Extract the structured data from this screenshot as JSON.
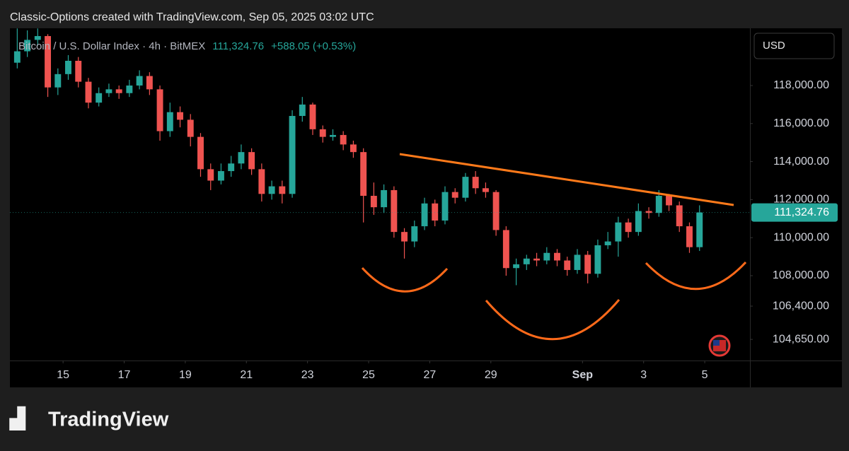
{
  "header": "Classic-Options created with TradingView.com, Sep 05, 2025 03:02 UTC",
  "logo": "TradingView",
  "currency": "USD",
  "chart_data": {
    "type": "candlestick",
    "symbol": "Bitcoin / U.S. Dollar Index · 4h · BitMEX",
    "last_price": "111,324.76",
    "change": "+588.05 (+0.53%)",
    "up_color": "#26a69a",
    "down_color": "#ef5350",
    "xlim": [
      13.26,
      37.48
    ],
    "xticks": [
      15,
      17,
      19,
      21,
      23,
      25,
      27,
      29,
      {
        "value": 32,
        "label": "Sep"
      },
      {
        "value": 34,
        "label": "3"
      },
      {
        "value": 36,
        "label": "5"
      }
    ],
    "ylim": [
      103540,
      121010
    ],
    "yticks": [
      {
        "value": 104650,
        "label": "104,650.00"
      },
      {
        "value": 106400,
        "label": "106,400.00"
      },
      {
        "value": 108000,
        "label": "108,000.00"
      },
      {
        "value": 110000,
        "label": "110,000.00"
      },
      {
        "value": 112000,
        "label": "112,000.00"
      },
      {
        "value": 114000,
        "label": "114,000.00"
      },
      {
        "value": 116000,
        "label": "116,000.00"
      },
      {
        "value": 118000,
        "label": "118,000.00"
      }
    ],
    "x": [
      13.5,
      13.83,
      14.17,
      14.5,
      14.83,
      15.17,
      15.5,
      15.83,
      16.17,
      16.5,
      16.83,
      17.17,
      17.5,
      17.83,
      18.17,
      18.5,
      18.83,
      19.17,
      19.5,
      19.83,
      20.17,
      20.5,
      20.83,
      21.17,
      21.5,
      21.83,
      22.17,
      22.5,
      22.83,
      23.17,
      23.5,
      23.83,
      24.17,
      24.5,
      24.83,
      25.17,
      25.5,
      25.83,
      26.17,
      26.5,
      26.83,
      27.17,
      27.5,
      27.83,
      28.17,
      28.5,
      28.83,
      29.17,
      29.5,
      29.83,
      30.17,
      30.5,
      30.83,
      31.17,
      31.5,
      31.83,
      32.17,
      32.5,
      32.83,
      33.17,
      33.5,
      33.83,
      34.17,
      34.5,
      34.83,
      35.17,
      35.5,
      35.83
    ],
    "open": [
      119200,
      119800,
      120400,
      120600,
      117900,
      118600,
      119300,
      118200,
      117100,
      117600,
      117800,
      117600,
      118000,
      118500,
      117800,
      115600,
      116600,
      116200,
      115300,
      113600,
      113000,
      113500,
      113900,
      114500,
      113600,
      112300,
      112700,
      112300,
      116400,
      117000,
      115700,
      115300,
      115400,
      114900,
      114500,
      112200,
      111600,
      112500,
      110300,
      109800,
      110600,
      111800,
      110900,
      112400,
      112100,
      113200,
      112600,
      112400,
      110400,
      108400,
      108600,
      108900,
      108800,
      109200,
      108800,
      108300,
      109100,
      108100,
      109600,
      109800,
      110800,
      110300,
      111400,
      111300,
      112200,
      111700,
      110600,
      109500
    ],
    "high": [
      121000,
      120900,
      121000,
      120700,
      118900,
      119600,
      119500,
      118400,
      117900,
      118100,
      118000,
      118300,
      118800,
      118700,
      118000,
      117100,
      116900,
      116500,
      115500,
      113900,
      113900,
      114300,
      114900,
      114700,
      113900,
      113000,
      113000,
      116700,
      117400,
      117100,
      115900,
      115700,
      115600,
      115100,
      114700,
      112900,
      112800,
      112700,
      110500,
      110900,
      112100,
      112000,
      112700,
      112600,
      113400,
      113500,
      112900,
      112500,
      110600,
      108900,
      109100,
      109200,
      109500,
      109400,
      109000,
      109400,
      109300,
      109900,
      110300,
      111100,
      111000,
      111800,
      111600,
      112500,
      112300,
      111900,
      110800,
      111700
    ],
    "low": [
      118900,
      119500,
      120100,
      117400,
      117500,
      118300,
      117900,
      116800,
      116900,
      117400,
      117300,
      117400,
      117800,
      117500,
      115100,
      115300,
      115800,
      114800,
      113200,
      112500,
      112800,
      113200,
      113600,
      113300,
      111900,
      112000,
      111800,
      112100,
      116100,
      115400,
      115000,
      115100,
      114600,
      114200,
      110800,
      111200,
      111300,
      110000,
      108900,
      109500,
      110400,
      110600,
      110700,
      111800,
      111900,
      112300,
      112100,
      110100,
      108000,
      107500,
      108300,
      108500,
      108600,
      108500,
      108000,
      108100,
      107600,
      107900,
      109400,
      109000,
      110000,
      110100,
      111000,
      111100,
      111400,
      110300,
      109200,
      109300
    ],
    "close": [
      119800,
      120400,
      120600,
      117900,
      118600,
      119300,
      118200,
      117100,
      117600,
      117800,
      117600,
      118000,
      118500,
      117800,
      115600,
      116600,
      116200,
      115300,
      113600,
      113000,
      113500,
      113900,
      114500,
      113600,
      112300,
      112700,
      112300,
      116400,
      117000,
      115700,
      115300,
      115400,
      114900,
      114500,
      112200,
      111600,
      112500,
      110300,
      109800,
      110600,
      111800,
      110900,
      112400,
      112100,
      113200,
      112600,
      112400,
      110400,
      108400,
      108600,
      108900,
      108800,
      109200,
      108800,
      108300,
      109100,
      108100,
      109600,
      109800,
      110800,
      110300,
      111400,
      111300,
      112200,
      111700,
      110600,
      109500,
      111324.76
    ]
  }
}
